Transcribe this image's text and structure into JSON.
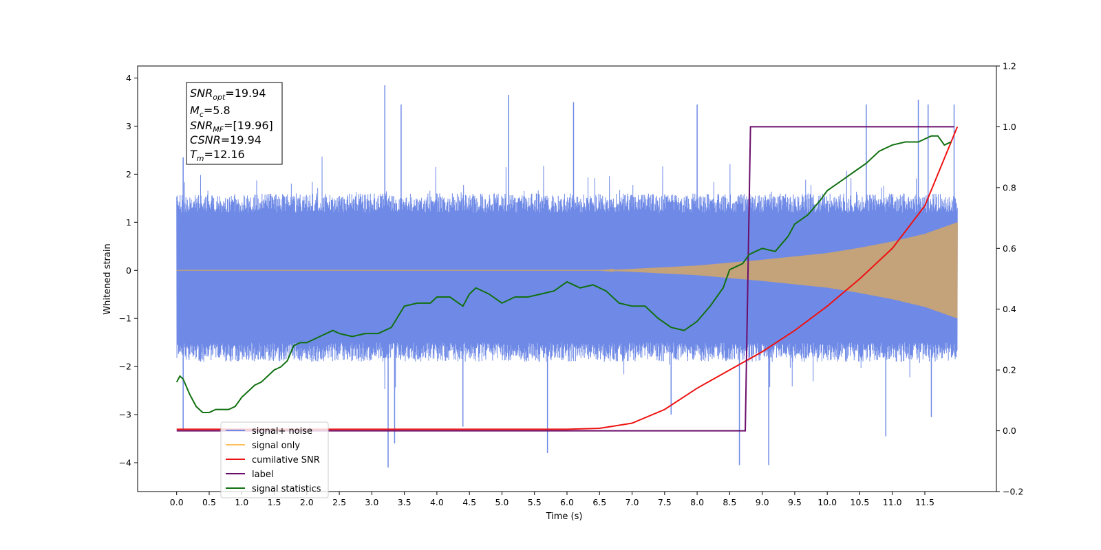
{
  "chart_data": {
    "type": "line",
    "xlabel": "Time (s)",
    "ylabel": "Whitened strain",
    "xlim": [
      -0.6,
      12.6
    ],
    "ylim": [
      -4.6,
      4.25
    ],
    "y2lim": [
      -0.2,
      1.2
    ],
    "x_ticks": [
      0.0,
      0.5,
      1.0,
      1.5,
      2.0,
      2.5,
      3.0,
      3.5,
      4.0,
      4.5,
      5.0,
      5.5,
      6.0,
      6.5,
      7.0,
      7.5,
      8.0,
      8.5,
      9.0,
      9.5,
      10.0,
      10.5,
      11.0,
      11.5
    ],
    "x_tick_labels": [
      "0.0",
      "0.5",
      "1.0",
      "1.5",
      "2.0",
      "2.5",
      "3.0",
      "3.5",
      "4.0",
      "4.5",
      "5.0",
      "5.5",
      "6.0",
      "6.5",
      "7.0",
      "7.5",
      "8.0",
      "8.5",
      "9.0",
      "9.5",
      "10.0",
      "10.5",
      "11.0",
      "11.5"
    ],
    "y_ticks": [
      -4,
      -3,
      -2,
      -1,
      0,
      1,
      2,
      3,
      4
    ],
    "y_tick_labels": [
      "−4",
      "−3",
      "−2",
      "−1",
      "0",
      "1",
      "2",
      "3",
      "4"
    ],
    "y2_ticks": [
      -0.2,
      0.0,
      0.2,
      0.4,
      0.6,
      0.8,
      1.0,
      1.2
    ],
    "y2_tick_labels": [
      "−0.2",
      "0.0",
      "0.2",
      "0.4",
      "0.6",
      "0.8",
      "1.0",
      "1.2"
    ],
    "grid": false,
    "legend_position": "lower-left",
    "legend": [
      {
        "label": "signal+ noise",
        "color": "#6f8ae6"
      },
      {
        "label": "signal only",
        "color": "#ffc060"
      },
      {
        "label": "cumilative SNR",
        "color": "#ee1111"
      },
      {
        "label": "label",
        "color": "#6a0d6a"
      },
      {
        "label": "signal statistics",
        "color": "#107010"
      }
    ],
    "annotation": {
      "snr_opt": {
        "base": "SNR",
        "sub": "opt",
        "value": "=19.94"
      },
      "mc": {
        "base": "M",
        "sub": "c",
        "value": "=5.8"
      },
      "snr_mf": {
        "base": "SNR",
        "sub": "MF",
        "value": "=[19.96]"
      },
      "csnr": {
        "base": "CSNR",
        "value": "=19.94"
      },
      "tm": {
        "base": "T",
        "sub": "m",
        "value": "=12.16"
      }
    },
    "series": [
      {
        "name": "signal+ noise",
        "axis": "left",
        "color": "#6f8ae6",
        "x_range": [
          0.0,
          12.0
        ],
        "envelope_outer": [
          -2.5,
          2.4
        ],
        "envelope_core": [
          -1.9,
          1.6
        ],
        "extreme_peaks": [
          {
            "x": 0.1,
            "y": 2.35
          },
          {
            "x": 3.2,
            "y": 3.85
          },
          {
            "x": 3.45,
            "y": 3.45
          },
          {
            "x": 5.1,
            "y": 3.65
          },
          {
            "x": 6.1,
            "y": 3.5
          },
          {
            "x": 8.0,
            "y": 3.45
          },
          {
            "x": 10.6,
            "y": 3.45
          },
          {
            "x": 11.4,
            "y": 3.55
          },
          {
            "x": 11.55,
            "y": 3.45
          },
          {
            "x": 11.95,
            "y": 3.45
          },
          {
            "x": 0.1,
            "y": -3.3
          },
          {
            "x": 3.25,
            "y": -4.1
          },
          {
            "x": 3.35,
            "y": -3.6
          },
          {
            "x": 5.7,
            "y": -3.8
          },
          {
            "x": 8.65,
            "y": -4.05
          },
          {
            "x": 9.1,
            "y": -4.05
          },
          {
            "x": 10.9,
            "y": -3.45
          },
          {
            "x": 11.6,
            "y": -3.05
          },
          {
            "x": 4.4,
            "y": -3.25
          },
          {
            "x": 7.6,
            "y": -3.0
          }
        ]
      },
      {
        "name": "signal only",
        "axis": "left",
        "color": "#c4a27a",
        "x_range": [
          0.0,
          12.0
        ],
        "envelope": {
          "x": [
            0.0,
            6.5,
            7.0,
            8.0,
            9.0,
            10.0,
            10.5,
            11.0,
            11.5,
            12.0
          ],
          "amp": [
            0.0,
            0.0,
            0.03,
            0.1,
            0.22,
            0.36,
            0.47,
            0.6,
            0.76,
            1.0
          ]
        }
      },
      {
        "name": "cumilative SNR",
        "axis": "right",
        "color": "#ee1111",
        "x": [
          0.0,
          6.0,
          6.5,
          7.0,
          7.5,
          8.0,
          8.5,
          9.0,
          9.5,
          10.0,
          10.5,
          11.0,
          11.5,
          12.0
        ],
        "y": [
          0.005,
          0.005,
          0.008,
          0.025,
          0.07,
          0.14,
          0.2,
          0.26,
          0.33,
          0.41,
          0.5,
          0.6,
          0.74,
          1.0
        ]
      },
      {
        "name": "label",
        "axis": "right",
        "color": "#6a0d6a",
        "x": [
          0.0,
          8.74,
          8.82,
          11.95
        ],
        "y": [
          0.0,
          0.0,
          1.0,
          1.0
        ]
      },
      {
        "name": "signal statistics",
        "axis": "right",
        "color": "#107010",
        "x": [
          0.0,
          0.05,
          0.1,
          0.2,
          0.3,
          0.4,
          0.5,
          0.6,
          0.7,
          0.8,
          0.9,
          1.0,
          1.1,
          1.2,
          1.3,
          1.4,
          1.5,
          1.6,
          1.7,
          1.8,
          1.9,
          2.0,
          2.2,
          2.4,
          2.5,
          2.7,
          2.9,
          3.1,
          3.3,
          3.5,
          3.7,
          3.9,
          4.0,
          4.2,
          4.4,
          4.5,
          4.6,
          4.8,
          5.0,
          5.2,
          5.4,
          5.6,
          5.8,
          6.0,
          6.2,
          6.4,
          6.6,
          6.8,
          7.0,
          7.2,
          7.4,
          7.6,
          7.8,
          8.0,
          8.2,
          8.4,
          8.5,
          8.6,
          8.7,
          8.8,
          8.9,
          9.0,
          9.2,
          9.4,
          9.5,
          9.7,
          9.9,
          10.0,
          10.2,
          10.4,
          10.6,
          10.8,
          11.0,
          11.2,
          11.4,
          11.5,
          11.6,
          11.7,
          11.8,
          11.9
        ],
        "y": [
          0.16,
          0.18,
          0.17,
          0.12,
          0.08,
          0.06,
          0.06,
          0.07,
          0.07,
          0.07,
          0.08,
          0.11,
          0.13,
          0.15,
          0.16,
          0.18,
          0.2,
          0.21,
          0.23,
          0.28,
          0.29,
          0.29,
          0.31,
          0.33,
          0.32,
          0.31,
          0.32,
          0.32,
          0.34,
          0.41,
          0.42,
          0.42,
          0.44,
          0.44,
          0.41,
          0.45,
          0.47,
          0.45,
          0.42,
          0.44,
          0.44,
          0.45,
          0.46,
          0.49,
          0.47,
          0.48,
          0.46,
          0.42,
          0.41,
          0.41,
          0.37,
          0.34,
          0.33,
          0.36,
          0.41,
          0.47,
          0.53,
          0.54,
          0.55,
          0.58,
          0.59,
          0.6,
          0.59,
          0.64,
          0.68,
          0.71,
          0.76,
          0.79,
          0.82,
          0.85,
          0.88,
          0.92,
          0.94,
          0.95,
          0.95,
          0.96,
          0.97,
          0.97,
          0.94,
          0.95
        ]
      }
    ]
  }
}
